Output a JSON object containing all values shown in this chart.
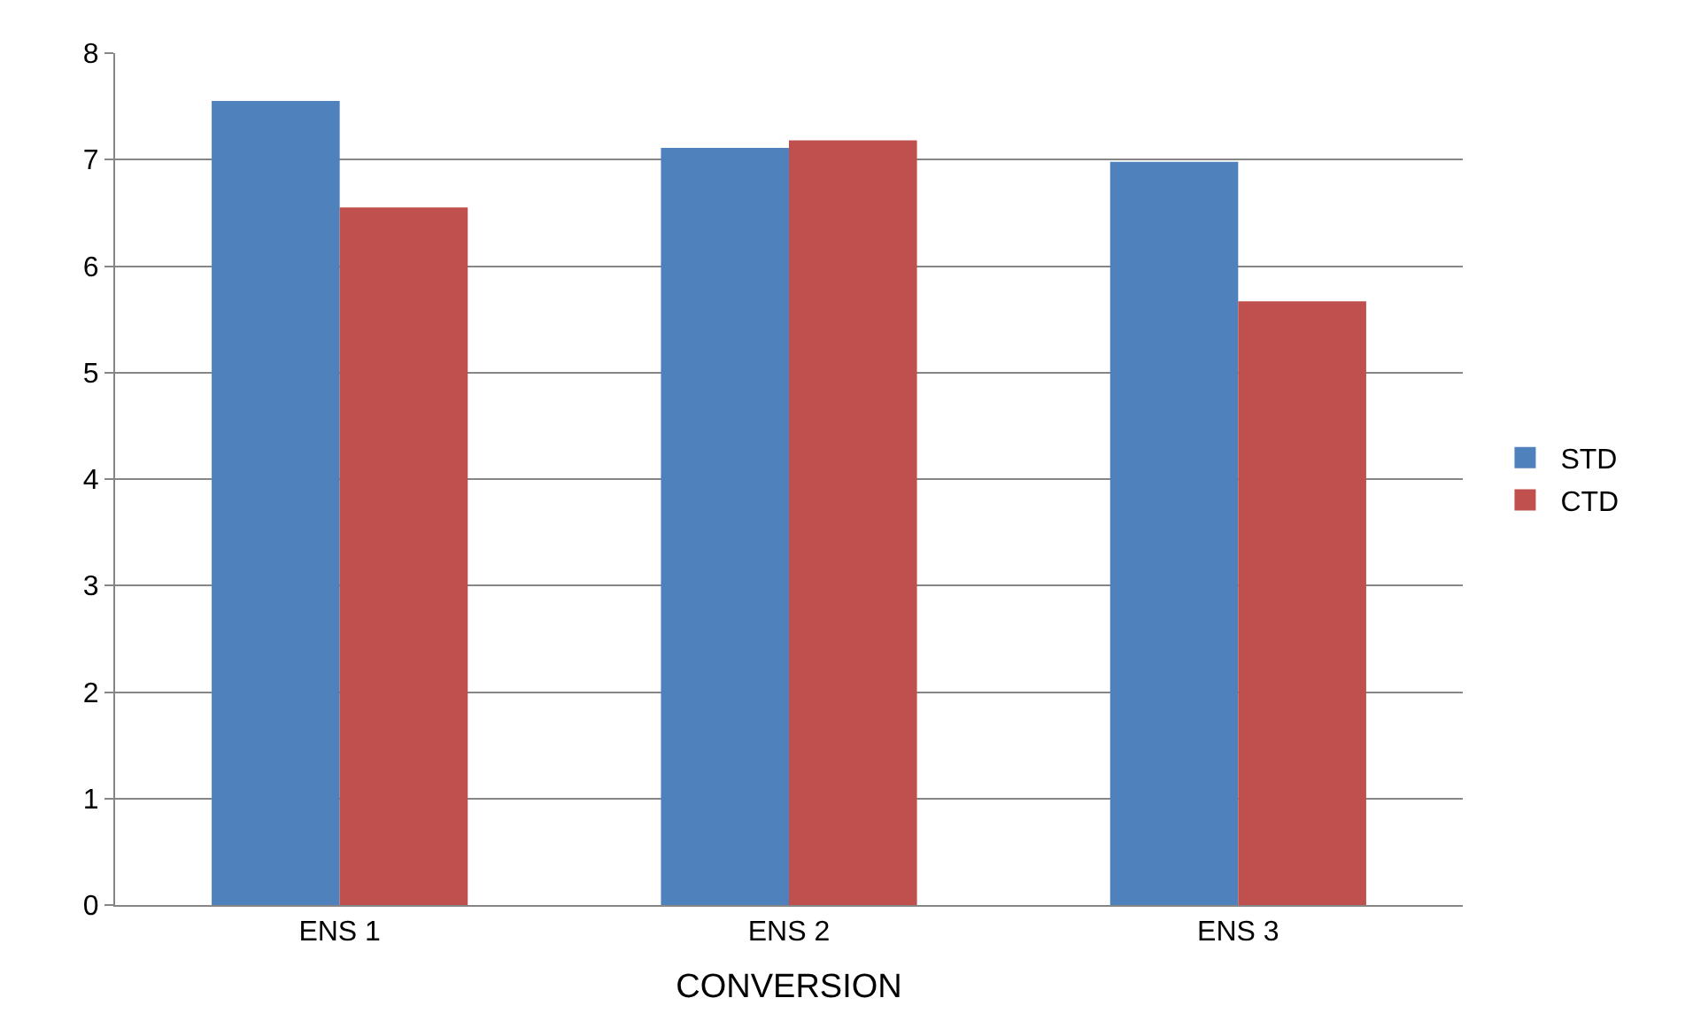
{
  "chart_data": {
    "type": "bar",
    "xlabel": "CONVERSION",
    "categories": [
      "ENS 1",
      "ENS 2",
      "ENS 3"
    ],
    "series": [
      {
        "name": "STD",
        "color": "#4f81bd",
        "values": [
          7.55,
          7.11,
          6.98
        ]
      },
      {
        "name": "CTD",
        "color": "#c0504d",
        "values": [
          6.55,
          7.18,
          5.67
        ]
      }
    ],
    "ylim": [
      0,
      8
    ],
    "yticks": [
      0,
      1,
      2,
      3,
      4,
      5,
      6,
      7,
      8
    ],
    "grid": "y",
    "legend": "right"
  }
}
